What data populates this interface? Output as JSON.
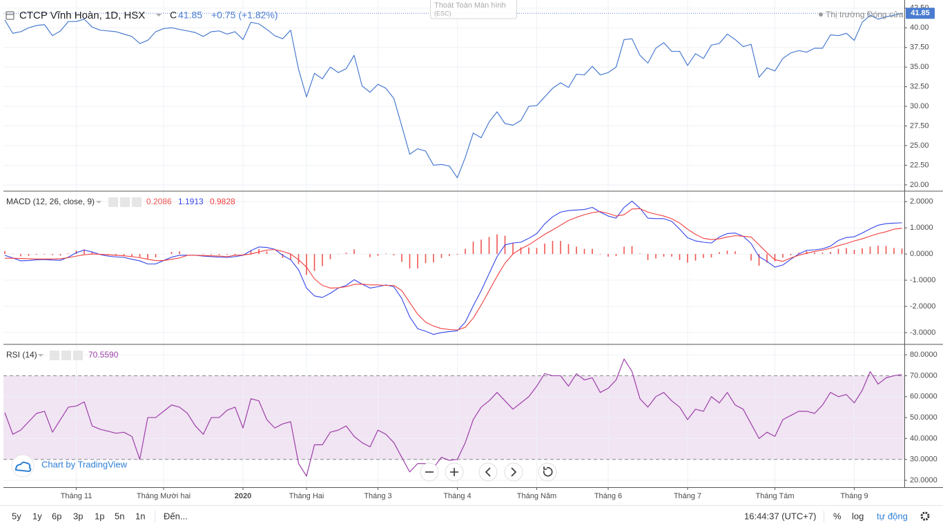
{
  "ui": {
    "fullscreen_exit": "Thoát Toàn Màn hình",
    "fullscreen_exit_key": "(ESC)",
    "market_status": "Thị trường Đóng cửa",
    "watermark": "Chart by TradingView",
    "ranges": [
      "5y",
      "1y",
      "6p",
      "3p",
      "1p",
      "5n",
      "1n"
    ],
    "goto": "Đến...",
    "clock": "16:44:37 (UTC+7)",
    "scale_buttons": [
      "%",
      "log",
      "tự động"
    ]
  },
  "chart_data": [
    {
      "type": "line",
      "title": "CTCP Vĩnh Hoàn, 1D, HSX",
      "close_prefix": "C",
      "change_label": "+0.75 (+1.82%)",
      "color": "#4a7bd0",
      "values": [
        41.0,
        39.3,
        39.5,
        40.0,
        40.3,
        40.4,
        39.0,
        39.6,
        40.8,
        40.8,
        41.1,
        40.1,
        39.7,
        39.6,
        39.5,
        39.2,
        38.9,
        38.0,
        38.4,
        39.5,
        39.9,
        40.0,
        39.8,
        39.6,
        39.4,
        38.9,
        39.5,
        39.6,
        39.2,
        39.5,
        38.5,
        40.7,
        40.5,
        39.8,
        39.0,
        38.6,
        39.7,
        34.7,
        31.2,
        34.2,
        33.5,
        35.0,
        34.3,
        34.8,
        36.5,
        32.6,
        31.8,
        32.8,
        32.3,
        31.0,
        27.5,
        23.9,
        24.6,
        24.3,
        22.5,
        22.6,
        22.4,
        20.9,
        23.5,
        26.6,
        26.0,
        28.0,
        29.3,
        27.8,
        27.6,
        28.2,
        30.0,
        30.1,
        31.2,
        32.3,
        33.0,
        32.4,
        34.1,
        34.0,
        35.1,
        34.0,
        34.3,
        35.0,
        38.5,
        38.6,
        36.5,
        35.5,
        37.4,
        38.1,
        37.0,
        37.0,
        35.2,
        36.7,
        36.1,
        37.8,
        38.0,
        39.2,
        38.5,
        37.6,
        37.9,
        33.7,
        34.9,
        34.5,
        36.1,
        36.8,
        37.1,
        36.9,
        37.4,
        37.4,
        39.1,
        39.0,
        39.3,
        38.4,
        40.7,
        41.6,
        41.1,
        41.4,
        41.6,
        41.85
      ],
      "ylim": [
        19.2,
        43.1
      ],
      "yticks": [
        {
          "value": 20,
          "label": "20.00"
        },
        {
          "value": 22.5,
          "label": "22.50"
        },
        {
          "value": 25,
          "label": "25.00"
        },
        {
          "value": 27.5,
          "label": "27.50"
        },
        {
          "value": 30,
          "label": "30.00"
        },
        {
          "value": 32.5,
          "label": "32.50"
        },
        {
          "value": 35,
          "label": "35.00"
        },
        {
          "value": 37.5,
          "label": "37.50"
        },
        {
          "value": 40,
          "label": "40.00"
        },
        {
          "value": 42.5,
          "label": "42.50"
        }
      ],
      "grid": true
    },
    {
      "type": "macd",
      "title": "MACD (12, 26, close, 9)",
      "series": [
        {
          "type": "histogram",
          "color": "#ef5350",
          "values": [
            0.11,
            0.01,
            -0.09,
            -0.07,
            -0.03,
            -0.02,
            -0.04,
            -0.06,
            0.02,
            0.13,
            0.18,
            0.08,
            -0.01,
            -0.05,
            -0.06,
            -0.06,
            -0.1,
            -0.12,
            -0.18,
            -0.13,
            0.0,
            0.08,
            0.1,
            0.0,
            0.0,
            -0.02,
            -0.03,
            -0.04,
            -0.03,
            -0.05,
            -0.01,
            0.13,
            0.19,
            0.1,
            0.01,
            -0.15,
            -0.22,
            -0.38,
            -0.8,
            -0.65,
            -0.46,
            -0.2,
            -0.01,
            0.05,
            0.18,
            0.0,
            -0.12,
            -0.07,
            0.02,
            -0.05,
            -0.3,
            -0.55,
            -0.55,
            -0.35,
            -0.32,
            -0.15,
            -0.08,
            -0.03,
            0.2,
            0.47,
            0.55,
            0.65,
            0.75,
            0.7,
            0.42,
            0.25,
            0.25,
            0.23,
            0.4,
            0.5,
            0.5,
            0.38,
            0.28,
            0.2,
            0.2,
            -0.02,
            -0.1,
            -0.08,
            0.28,
            0.3,
            0.02,
            -0.23,
            -0.17,
            -0.1,
            -0.1,
            -0.23,
            -0.33,
            -0.25,
            -0.15,
            -0.13,
            0.07,
            0.13,
            0.1,
            0.0,
            -0.25,
            -0.45,
            -0.33,
            -0.28,
            -0.14,
            -0.05,
            0.05,
            0.11,
            0.06,
            0.05,
            0.08,
            0.2,
            0.23,
            0.16,
            0.22,
            0.28,
            0.32,
            0.31,
            0.23,
            0.2086
          ]
        },
        {
          "type": "line",
          "color": "#3344e8",
          "values": [
            -0.05,
            -0.15,
            -0.26,
            -0.25,
            -0.22,
            -0.21,
            -0.23,
            -0.24,
            -0.12,
            0.05,
            0.15,
            0.08,
            -0.02,
            -0.08,
            -0.11,
            -0.13,
            -0.2,
            -0.26,
            -0.38,
            -0.38,
            -0.25,
            -0.12,
            -0.05,
            -0.05,
            -0.05,
            -0.08,
            -0.1,
            -0.12,
            -0.13,
            -0.1,
            -0.05,
            0.13,
            0.27,
            0.25,
            0.18,
            -0.05,
            -0.22,
            -0.6,
            -1.3,
            -1.6,
            -1.66,
            -1.5,
            -1.3,
            -1.2,
            -0.98,
            -1.15,
            -1.3,
            -1.25,
            -1.18,
            -1.25,
            -1.7,
            -2.4,
            -2.85,
            -2.95,
            -3.07,
            -3.0,
            -2.96,
            -2.93,
            -2.6,
            -1.98,
            -1.4,
            -0.75,
            -0.1,
            0.35,
            0.42,
            0.45,
            0.6,
            0.78,
            1.15,
            1.42,
            1.6,
            1.66,
            1.68,
            1.7,
            1.78,
            1.6,
            1.45,
            1.37,
            1.78,
            2.02,
            1.75,
            1.37,
            1.35,
            1.35,
            1.25,
            0.95,
            0.62,
            0.5,
            0.45,
            0.42,
            0.65,
            0.78,
            0.8,
            0.68,
            0.4,
            -0.1,
            -0.28,
            -0.5,
            -0.42,
            -0.2,
            0.0,
            0.14,
            0.16,
            0.2,
            0.3,
            0.52,
            0.63,
            0.66,
            0.8,
            0.96,
            1.1,
            1.16,
            1.18,
            1.1913
          ]
        },
        {
          "type": "line",
          "color": "#f23c3c",
          "values": [
            -0.16,
            -0.16,
            -0.17,
            -0.18,
            -0.19,
            -0.19,
            -0.19,
            -0.18,
            -0.14,
            -0.08,
            -0.03,
            0.0,
            -0.01,
            -0.03,
            -0.05,
            -0.07,
            -0.1,
            -0.14,
            -0.2,
            -0.25,
            -0.25,
            -0.2,
            -0.15,
            -0.05,
            -0.05,
            -0.06,
            -0.07,
            -0.08,
            -0.1,
            -0.05,
            -0.04,
            0.0,
            0.08,
            0.15,
            0.17,
            0.1,
            0.0,
            -0.22,
            -0.5,
            -0.95,
            -1.2,
            -1.3,
            -1.29,
            -1.25,
            -1.16,
            -1.15,
            -1.18,
            -1.18,
            -1.2,
            -1.2,
            -1.4,
            -1.85,
            -2.3,
            -2.6,
            -2.75,
            -2.85,
            -2.88,
            -2.9,
            -2.8,
            -2.45,
            -1.95,
            -1.4,
            -0.85,
            -0.35,
            0.0,
            0.2,
            0.35,
            0.55,
            0.75,
            0.92,
            1.1,
            1.28,
            1.4,
            1.5,
            1.58,
            1.62,
            1.55,
            1.45,
            1.5,
            1.72,
            1.73,
            1.6,
            1.52,
            1.45,
            1.35,
            1.18,
            0.95,
            0.75,
            0.6,
            0.55,
            0.58,
            0.65,
            0.7,
            0.68,
            0.65,
            0.35,
            0.05,
            -0.22,
            -0.28,
            -0.15,
            -0.05,
            0.03,
            0.1,
            0.15,
            0.22,
            0.32,
            0.4,
            0.5,
            0.58,
            0.68,
            0.78,
            0.85,
            0.95,
            0.9828
          ]
        }
      ],
      "ylim": [
        -3.45,
        2.4
      ],
      "yticks": [
        {
          "value": -3,
          "label": "-3.0000"
        },
        {
          "value": -2,
          "label": "-2.0000"
        },
        {
          "value": -1,
          "label": "-1.0000"
        },
        {
          "value": 0,
          "label": "0.0000"
        },
        {
          "value": 1,
          "label": "1.0000"
        },
        {
          "value": 2,
          "label": "2.0000"
        }
      ],
      "grid": true
    },
    {
      "type": "line",
      "title": "RSI (14)",
      "legend_value_label": "70.5590",
      "color": "#9c3fa8",
      "values": [
        52.3,
        42,
        44,
        48,
        52,
        53,
        43,
        49,
        55,
        55.5,
        57.5,
        46,
        44.4,
        43.5,
        42.5,
        43,
        41,
        30,
        50,
        50,
        53,
        56,
        55,
        52,
        46,
        42,
        50,
        50,
        53.5,
        55,
        45,
        59,
        58,
        49,
        45,
        47,
        48,
        28,
        22,
        37,
        37,
        43,
        44,
        46,
        41,
        38,
        36,
        44,
        42,
        38,
        31,
        24,
        28,
        28,
        26,
        31,
        29.5,
        30,
        38,
        49,
        55,
        58,
        62,
        58,
        54,
        57,
        60,
        65,
        71,
        70,
        70,
        65,
        71,
        68,
        69,
        62,
        64,
        68,
        78,
        72,
        59,
        55,
        60,
        62,
        58,
        55,
        49,
        54,
        53,
        60,
        57,
        62,
        56,
        54,
        47,
        40,
        43,
        41,
        49,
        51,
        53,
        53,
        52,
        56,
        62,
        60,
        61,
        57,
        63,
        72,
        66,
        69,
        70,
        70.559
      ],
      "band": [
        30,
        70
      ],
      "band_color": "#f1e4f3",
      "categories": [
        null,
        null,
        null,
        null,
        null,
        null,
        null,
        null,
        null,
        "Tháng 11",
        null,
        null,
        null,
        null,
        null,
        null,
        null,
        null,
        null,
        null,
        "Tháng Mười hai",
        null,
        null,
        null,
        null,
        null,
        null,
        null,
        null,
        null,
        "2020",
        null,
        null,
        null,
        null,
        null,
        null,
        null,
        "Tháng Hai",
        null,
        null,
        null,
        null,
        null,
        null,
        null,
        null,
        "Tháng 3",
        null,
        null,
        null,
        null,
        null,
        null,
        null,
        null,
        null,
        "Tháng 4",
        null,
        null,
        null,
        null,
        null,
        null,
        null,
        null,
        null,
        "Tháng Năm",
        null,
        null,
        null,
        null,
        null,
        null,
        null,
        null,
        "Tháng 6",
        null,
        null,
        null,
        null,
        null,
        null,
        null,
        null,
        null,
        "Tháng 7",
        null,
        null,
        null,
        null,
        null,
        null,
        null,
        null,
        null,
        null,
        "Tháng Tám",
        null,
        null,
        null,
        null,
        null,
        null,
        null,
        null,
        null,
        "Tháng 9",
        null,
        null,
        null,
        null,
        null,
        null
      ],
      "ylim": [
        16.7,
        85
      ],
      "yticks": [
        {
          "value": 20,
          "label": "20.0000"
        },
        {
          "value": 30,
          "label": "30.0000"
        },
        {
          "value": 40,
          "label": "40.0000"
        },
        {
          "value": 50,
          "label": "50.0000"
        },
        {
          "value": 60,
          "label": "60.0000"
        },
        {
          "value": 70,
          "label": "70.0000"
        },
        {
          "value": 80,
          "label": "80.0000"
        }
      ],
      "grid": true
    }
  ]
}
